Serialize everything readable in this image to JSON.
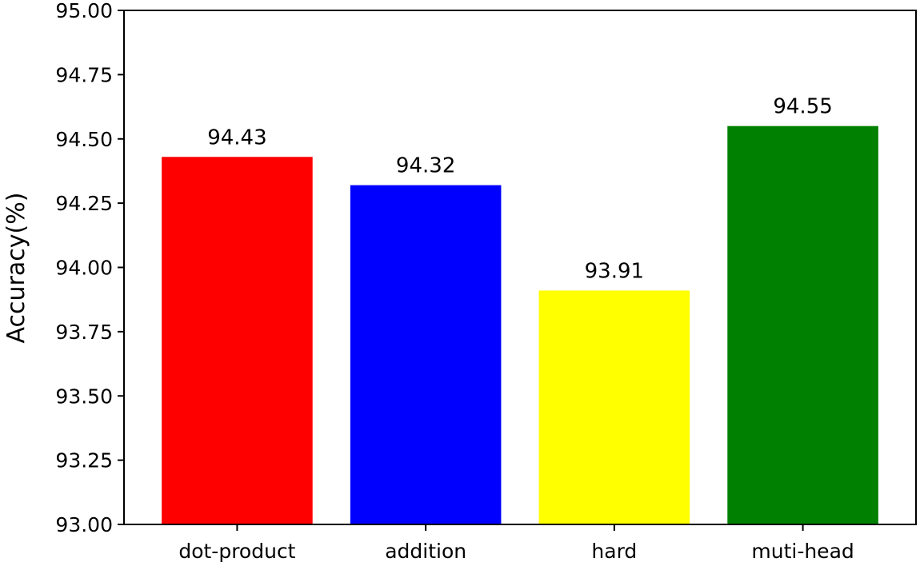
{
  "chart_data": {
    "type": "bar",
    "title": "",
    "xlabel": "",
    "ylabel": "Accuracy(%)",
    "ylim": [
      93.0,
      95.0
    ],
    "yticks": [
      93.0,
      93.25,
      93.5,
      93.75,
      94.0,
      94.25,
      94.5,
      94.75,
      95.0
    ],
    "ytick_labels": [
      "93.00",
      "93.25",
      "93.50",
      "93.75",
      "94.00",
      "94.25",
      "94.50",
      "94.75",
      "95.00"
    ],
    "categories": [
      "dot-product",
      "addition",
      "hard",
      "muti-head"
    ],
    "values": [
      94.43,
      94.32,
      93.91,
      94.55
    ],
    "data_labels": [
      "94.43",
      "94.32",
      "93.91",
      "94.55"
    ],
    "colors": [
      "#ff0000",
      "#0000ff",
      "#ffff00",
      "#008000"
    ],
    "grid": false,
    "legend": "none"
  }
}
